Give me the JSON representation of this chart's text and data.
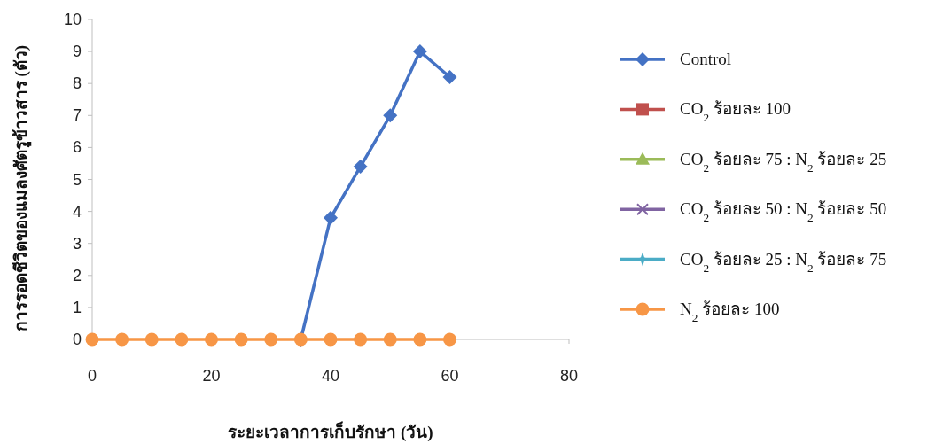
{
  "chart_data": {
    "type": "line",
    "xlabel": "ระยะเวลาการเก็บรักษา (วัน)",
    "ylabel": "การรอดชีวิตของแมลงศัตรูข้าวสาร (ตัว)",
    "x": [
      0,
      5,
      10,
      15,
      20,
      25,
      30,
      35,
      40,
      45,
      50,
      55,
      60
    ],
    "xlim": [
      0,
      80
    ],
    "xticks": [
      0,
      20,
      40,
      60,
      80
    ],
    "ylim": [
      0,
      10
    ],
    "yticks": [
      0,
      1,
      2,
      3,
      4,
      5,
      6,
      7,
      8,
      9,
      10
    ],
    "legend": "right",
    "series": [
      {
        "name": "Control",
        "color": "#4472c4",
        "marker": "diamond",
        "values": [
          null,
          null,
          null,
          null,
          null,
          null,
          null,
          0,
          3.8,
          5.4,
          7,
          9,
          8.2
        ]
      },
      {
        "name": "CO$_{2}$ ร้อยละ 100",
        "color": "#c0504d",
        "marker": "square",
        "values": [
          null,
          null,
          null,
          null,
          null,
          null,
          null,
          null,
          null,
          null,
          null,
          null,
          null
        ]
      },
      {
        "name": "CO$_{2}$ ร้อยละ 75 : N$_{2}$ ร้อยละ 25",
        "color": "#9bbb59",
        "marker": "triangle",
        "values": [
          null,
          null,
          null,
          null,
          null,
          null,
          null,
          null,
          null,
          null,
          null,
          null,
          null
        ]
      },
      {
        "name": "CO$_{2}$ ร้อยละ 50 : N$_{2}$ ร้อยละ 50",
        "color": "#8064a2",
        "marker": "cross",
        "values": [
          null,
          null,
          null,
          null,
          null,
          null,
          null,
          null,
          null,
          null,
          null,
          null,
          null
        ]
      },
      {
        "name": "CO$_{2}$ ร้อยละ 25 : N$_{2}$ ร้อยละ 75",
        "color": "#4bacc6",
        "marker": "star",
        "values": [
          null,
          null,
          null,
          null,
          null,
          null,
          null,
          null,
          null,
          null,
          null,
          null,
          null
        ]
      },
      {
        "name": "N$_{2}$ ร้อยละ 100",
        "color": "#f79646",
        "marker": "circle",
        "values": [
          0,
          0,
          0,
          0,
          0,
          0,
          0,
          0,
          0,
          0,
          0,
          0,
          0
        ]
      }
    ]
  }
}
